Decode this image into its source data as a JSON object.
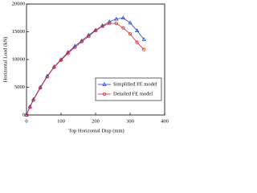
{
  "chart_data": {
    "type": "line",
    "xlabel": "Top Horizontal Disp (mm)",
    "ylabel": "Horizontal Load (kN)",
    "x": [
      0,
      10,
      20,
      40,
      60,
      80,
      100,
      120,
      140,
      160,
      180,
      200,
      220,
      240,
      260,
      280,
      300,
      320,
      340
    ],
    "series": [
      {
        "name": "Simplified FE model",
        "color": "#1f3fd0",
        "marker": "triangle",
        "values": [
          0,
          1500,
          2800,
          5000,
          7000,
          8700,
          10000,
          11300,
          12400,
          13400,
          14400,
          15300,
          16100,
          16800,
          17300,
          17500,
          16600,
          15200,
          13600
        ]
      },
      {
        "name": "Detailed FE model",
        "color": "#d02020",
        "marker": "circle",
        "values": [
          0,
          1400,
          2700,
          4900,
          6900,
          8600,
          9900,
          11100,
          12200,
          13200,
          14200,
          15200,
          16000,
          16500,
          16500,
          15700,
          14600,
          13100,
          11800
        ]
      }
    ],
    "xlim": [
      0,
      400
    ],
    "xticks": [
      0,
      100,
      200,
      300,
      400
    ],
    "ylim": [
      0,
      20000
    ],
    "yticks": [
      0,
      5000,
      10000,
      15000,
      20000
    ],
    "legend": "lower right"
  }
}
